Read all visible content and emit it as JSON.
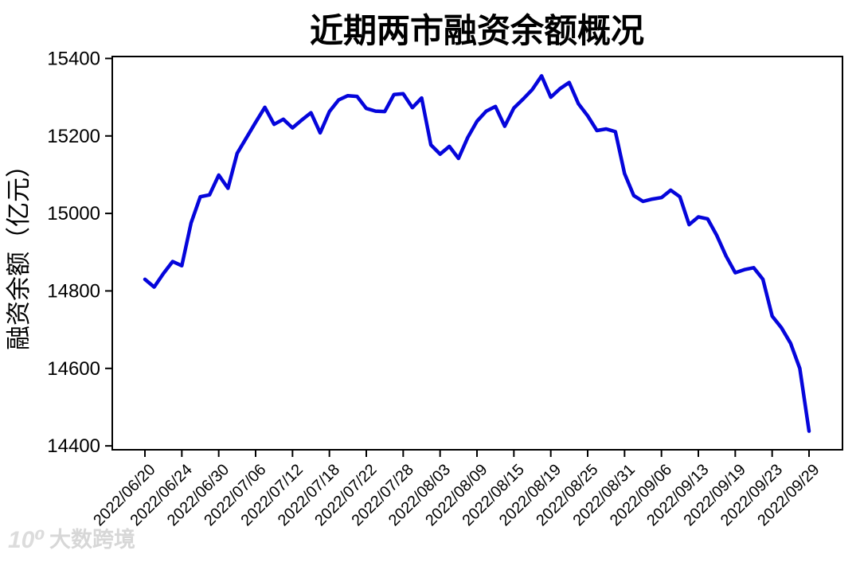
{
  "chart_data": {
    "type": "line",
    "title": "近期两市融资余额概况",
    "ylabel": "融资余额（亿元）",
    "series_name": "融资余额",
    "x": [
      "2022/06/20",
      "2022/06/21",
      "2022/06/22",
      "2022/06/23",
      "2022/06/24",
      "2022/06/27",
      "2022/06/28",
      "2022/06/29",
      "2022/06/30",
      "2022/07/01",
      "2022/07/04",
      "2022/07/05",
      "2022/07/06",
      "2022/07/07",
      "2022/07/08",
      "2022/07/11",
      "2022/07/12",
      "2022/07/13",
      "2022/07/14",
      "2022/07/15",
      "2022/07/18",
      "2022/07/19",
      "2022/07/20",
      "2022/07/21",
      "2022/07/22",
      "2022/07/25",
      "2022/07/26",
      "2022/07/27",
      "2022/07/28",
      "2022/07/29",
      "2022/08/01",
      "2022/08/02",
      "2022/08/03",
      "2022/08/04",
      "2022/08/05",
      "2022/08/08",
      "2022/08/09",
      "2022/08/10",
      "2022/08/11",
      "2022/08/12",
      "2022/08/15",
      "2022/08/16",
      "2022/08/17",
      "2022/08/18",
      "2022/08/19",
      "2022/08/22",
      "2022/08/23",
      "2022/08/24",
      "2022/08/25",
      "2022/08/26",
      "2022/08/29",
      "2022/08/30",
      "2022/08/31",
      "2022/09/01",
      "2022/09/02",
      "2022/09/05",
      "2022/09/06",
      "2022/09/07",
      "2022/09/08",
      "2022/09/09",
      "2022/09/13",
      "2022/09/14",
      "2022/09/15",
      "2022/09/16",
      "2022/09/19",
      "2022/09/20",
      "2022/09/21",
      "2022/09/22",
      "2022/09/23",
      "2022/09/26",
      "2022/09/27",
      "2022/09/28",
      "2022/09/29"
    ],
    "values": [
      14830,
      14810,
      14845,
      14876,
      14865,
      14975,
      15043,
      15048,
      15099,
      15065,
      15155,
      15195,
      15235,
      15274,
      15230,
      15243,
      15221,
      15241,
      15260,
      15208,
      15263,
      15293,
      15304,
      15302,
      15271,
      15264,
      15263,
      15307,
      15309,
      15273,
      15298,
      15177,
      15153,
      15173,
      15142,
      15196,
      15238,
      15264,
      15276,
      15225,
      15272,
      15295,
      15320,
      15355,
      15300,
      15322,
      15338,
      15283,
      15252,
      15214,
      15218,
      15211,
      15103,
      15046,
      15031,
      15037,
      15041,
      15060,
      15043,
      14971,
      14991,
      14986,
      14943,
      14890,
      14847,
      14855,
      14860,
      14830,
      14735,
      14705,
      14665,
      14600,
      14438
    ],
    "xtick_every": 4,
    "xtick_labels": [
      "2022/06/20",
      "2022/06/24",
      "2022/06/30",
      "2022/07/06",
      "2022/07/12",
      "2022/07/18",
      "2022/07/22",
      "2022/07/28",
      "2022/08/03",
      "2022/08/09",
      "2022/08/15",
      "2022/08/19",
      "2022/08/25",
      "2022/08/31",
      "2022/09/06",
      "2022/09/13",
      "2022/09/19",
      "2022/09/23",
      "2022/09/29"
    ],
    "xtick_rotation": 45,
    "yticks": [
      14400,
      14600,
      14800,
      15000,
      15200,
      15400
    ],
    "ylim": [
      14390,
      15405
    ],
    "grid": false,
    "legend_position": "none",
    "line_color": "#0505DB",
    "axis_color": "#000000"
  },
  "watermark": {
    "logo": "10⁰",
    "text": "大数跨境"
  }
}
